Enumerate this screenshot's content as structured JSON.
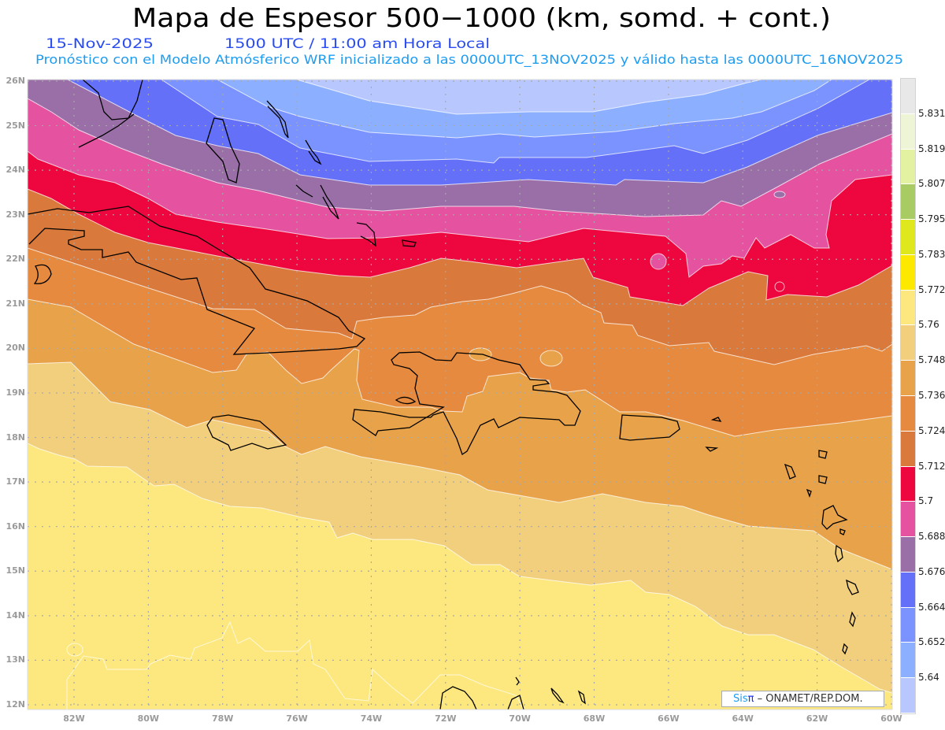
{
  "header": {
    "title": "Mapa de Espesor 500−1000 (km, somd. + cont.)",
    "date": "15-Nov-2025",
    "time": "1500 UTC / 11:00 am Hora Local",
    "subtitle": "Pronóstico con el Modelo Atmósferico WRF inicializado a las 0000UTC_13NOV2025 y válido hasta las  0000UTC_16NOV2025"
  },
  "map": {
    "lat_labels": [
      "26N",
      "25N",
      "24N",
      "23N",
      "22N",
      "21N",
      "20N",
      "19N",
      "18N",
      "17N",
      "16N",
      "15N",
      "14N",
      "13N",
      "12N"
    ],
    "lon_labels": [
      "82W",
      "80W",
      "78W",
      "76W",
      "74W",
      "72W",
      "70W",
      "68W",
      "66W",
      "64W",
      "62W",
      "60W"
    ]
  },
  "colorbar": {
    "colors": [
      "#e8e8e8",
      "#eef4d6",
      "#e2f2a0",
      "#a8cb64",
      "#dfe81c",
      "#fde800",
      "#fde87f",
      "#f2cf7d",
      "#e8a34a",
      "#e58a3e",
      "#d97a3c",
      "#ee063e",
      "#e552a0",
      "#9a6fa8",
      "#6470f8",
      "#7b93ff",
      "#8cb0ff",
      "#b8c8ff"
    ],
    "labels": [
      "5.831",
      "5.819",
      "5.807",
      "5.795",
      "5.783",
      "5.772",
      "5.76",
      "5.748",
      "5.736",
      "5.724",
      "5.712",
      "5.7",
      "5.688",
      "5.676",
      "5.664",
      "5.652",
      "5.64"
    ]
  },
  "logo": {
    "sis": "Sis",
    "pi": "π",
    "text": "– ONAMET/REP.DOM."
  },
  "colors": {
    "title": "#000000",
    "date_time": "#2a4cf0",
    "subtitle": "#1e9cf0",
    "contour_line": "#ffffff",
    "coastline": "#000000"
  }
}
